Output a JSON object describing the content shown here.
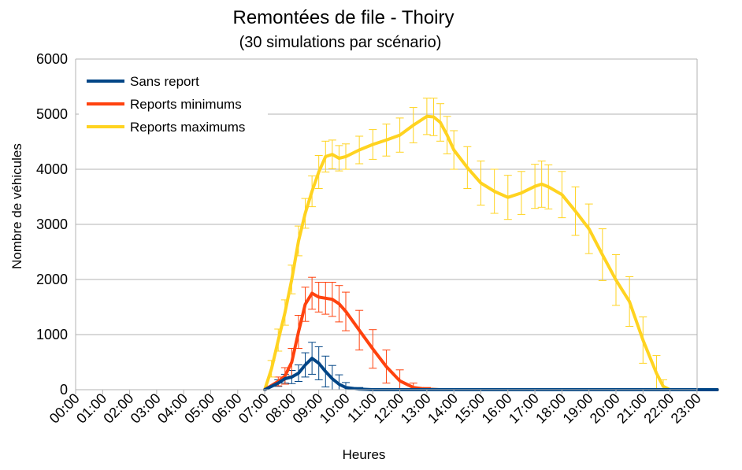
{
  "chart_data": {
    "type": "line",
    "title": "Remontées de file - Thoiry",
    "subtitle": "(30 simulations par scénario)",
    "xlabel": "Heures",
    "ylabel": "Nombre de véhicules",
    "ylim": [
      0,
      6000
    ],
    "yticks": [
      "0",
      "1000",
      "2000",
      "3000",
      "4000",
      "5000",
      "6000"
    ],
    "categories": [
      "00:00",
      "01:00",
      "02:00",
      "03:00",
      "04:00",
      "05:00",
      "06:00",
      "07:00",
      "08:00",
      "09:00",
      "10:00",
      "11:00",
      "12:00",
      "13:00",
      "14:00",
      "15:00",
      "16:00",
      "17:00",
      "18:00",
      "19:00",
      "20:00",
      "21:00",
      "22:00",
      "23:00"
    ],
    "grid": true,
    "legend_position": "top-left",
    "series": [
      {
        "name": "Sans report",
        "color": "#004586",
        "points": [
          [
            7.0,
            0
          ],
          [
            7.5,
            120
          ],
          [
            7.75,
            200
          ],
          [
            8.0,
            230
          ],
          [
            8.25,
            300
          ],
          [
            8.5,
            450
          ],
          [
            8.75,
            570
          ],
          [
            9.0,
            480
          ],
          [
            9.25,
            330
          ],
          [
            9.5,
            200
          ],
          [
            9.75,
            100
          ],
          [
            10.0,
            40
          ],
          [
            10.5,
            10
          ],
          [
            11.0,
            0
          ],
          [
            23.75,
            0
          ]
        ],
        "error_bars": [
          [
            7.5,
            60
          ],
          [
            7.75,
            80
          ],
          [
            8.0,
            120
          ],
          [
            8.25,
            150
          ],
          [
            8.5,
            220
          ],
          [
            8.75,
            290
          ],
          [
            9.0,
            300
          ],
          [
            9.25,
            280
          ],
          [
            9.5,
            240
          ],
          [
            9.75,
            170
          ],
          [
            10.0,
            90
          ],
          [
            10.5,
            30
          ]
        ]
      },
      {
        "name": "Reports minimums",
        "color": "#ff420e",
        "points": [
          [
            7.0,
            0
          ],
          [
            7.5,
            150
          ],
          [
            7.75,
            250
          ],
          [
            8.0,
            500
          ],
          [
            8.25,
            1050
          ],
          [
            8.5,
            1550
          ],
          [
            8.75,
            1750
          ],
          [
            9.0,
            1680
          ],
          [
            9.25,
            1660
          ],
          [
            9.5,
            1640
          ],
          [
            9.75,
            1560
          ],
          [
            10.0,
            1420
          ],
          [
            10.5,
            1080
          ],
          [
            11.0,
            740
          ],
          [
            11.5,
            420
          ],
          [
            12.0,
            160
          ],
          [
            12.5,
            40
          ],
          [
            13.0,
            10
          ],
          [
            13.5,
            0
          ],
          [
            23.75,
            0
          ]
        ],
        "error_bars": [
          [
            7.5,
            80
          ],
          [
            7.75,
            150
          ],
          [
            8.0,
            250
          ],
          [
            8.25,
            300
          ],
          [
            8.5,
            310
          ],
          [
            8.75,
            290
          ],
          [
            9.0,
            270
          ],
          [
            9.25,
            290
          ],
          [
            9.5,
            310
          ],
          [
            9.75,
            330
          ],
          [
            10.0,
            350
          ],
          [
            10.5,
            360
          ],
          [
            11.0,
            350
          ],
          [
            11.5,
            300
          ],
          [
            12.0,
            200
          ],
          [
            12.5,
            80
          ],
          [
            13.0,
            30
          ]
        ]
      },
      {
        "name": "Reports maximums",
        "color": "#ffd320",
        "points": [
          [
            7.0,
            0
          ],
          [
            7.25,
            380
          ],
          [
            7.5,
            900
          ],
          [
            7.75,
            1400
          ],
          [
            8.0,
            2000
          ],
          [
            8.25,
            2700
          ],
          [
            8.5,
            3200
          ],
          [
            8.75,
            3600
          ],
          [
            9.0,
            3950
          ],
          [
            9.25,
            4230
          ],
          [
            9.5,
            4270
          ],
          [
            9.75,
            4200
          ],
          [
            10.0,
            4230
          ],
          [
            10.5,
            4350
          ],
          [
            11.0,
            4450
          ],
          [
            11.5,
            4530
          ],
          [
            12.0,
            4620
          ],
          [
            12.5,
            4800
          ],
          [
            13.0,
            4960
          ],
          [
            13.25,
            4950
          ],
          [
            13.5,
            4850
          ],
          [
            13.75,
            4620
          ],
          [
            14.0,
            4350
          ],
          [
            14.5,
            4030
          ],
          [
            15.0,
            3750
          ],
          [
            15.5,
            3600
          ],
          [
            16.0,
            3490
          ],
          [
            16.5,
            3570
          ],
          [
            17.0,
            3690
          ],
          [
            17.25,
            3730
          ],
          [
            17.5,
            3680
          ],
          [
            18.0,
            3540
          ],
          [
            18.5,
            3240
          ],
          [
            19.0,
            2920
          ],
          [
            19.5,
            2450
          ],
          [
            20.0,
            1990
          ],
          [
            20.5,
            1600
          ],
          [
            21.0,
            900
          ],
          [
            21.5,
            300
          ],
          [
            21.75,
            60
          ],
          [
            22.0,
            0
          ],
          [
            23.75,
            0
          ]
        ],
        "error_bars": [
          [
            7.25,
            150
          ],
          [
            7.5,
            200
          ],
          [
            7.75,
            230
          ],
          [
            8.0,
            260
          ],
          [
            8.25,
            270
          ],
          [
            8.5,
            270
          ],
          [
            8.75,
            280
          ],
          [
            9.0,
            300
          ],
          [
            9.25,
            280
          ],
          [
            9.5,
            260
          ],
          [
            9.75,
            230
          ],
          [
            10.0,
            230
          ],
          [
            10.5,
            250
          ],
          [
            11.0,
            270
          ],
          [
            11.5,
            290
          ],
          [
            12.0,
            310
          ],
          [
            12.5,
            320
          ],
          [
            13.0,
            330
          ],
          [
            13.25,
            340
          ],
          [
            13.5,
            340
          ],
          [
            13.75,
            340
          ],
          [
            14.0,
            350
          ],
          [
            14.5,
            380
          ],
          [
            15.0,
            400
          ],
          [
            15.5,
            400
          ],
          [
            16.0,
            400
          ],
          [
            16.5,
            390
          ],
          [
            17.0,
            400
          ],
          [
            17.25,
            420
          ],
          [
            17.5,
            400
          ],
          [
            18.0,
            420
          ],
          [
            18.5,
            440
          ],
          [
            19.0,
            450
          ],
          [
            19.5,
            470
          ],
          [
            20.0,
            460
          ],
          [
            20.5,
            450
          ],
          [
            21.0,
            420
          ],
          [
            21.5,
            320
          ],
          [
            21.75,
            120
          ]
        ]
      }
    ]
  }
}
